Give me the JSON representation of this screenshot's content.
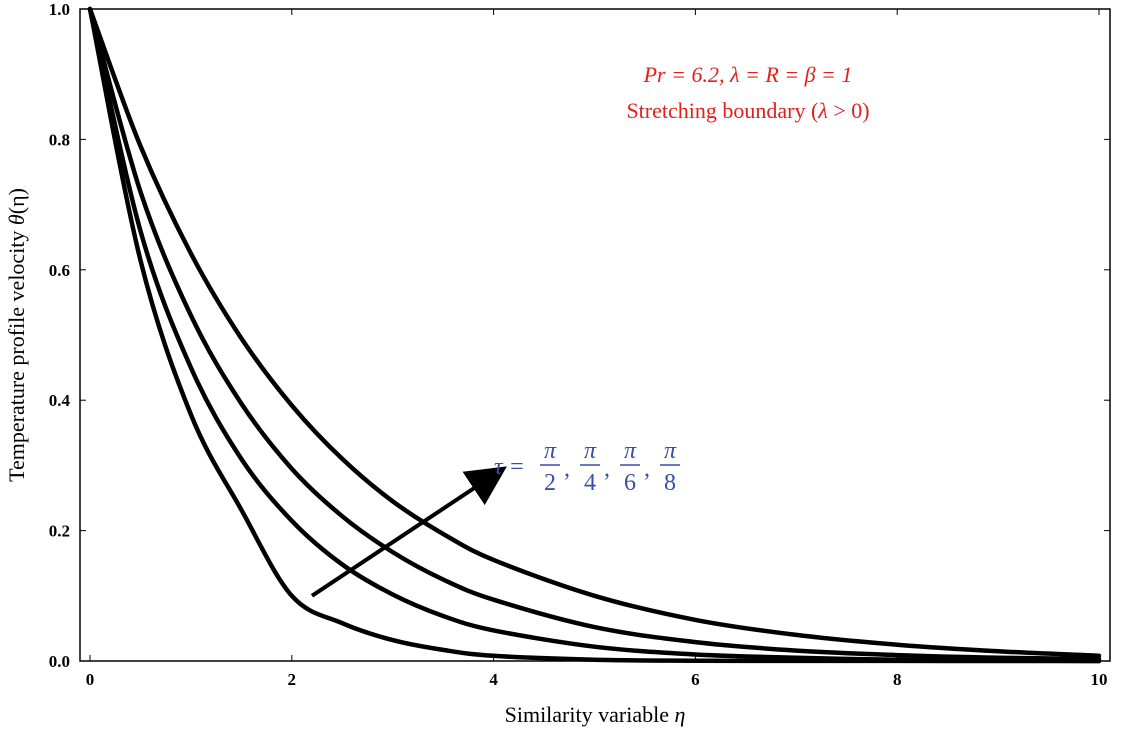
{
  "chart_data": {
    "type": "line",
    "xlabel_text": "Similarity variable ",
    "xlabel_symbol": "η",
    "ylabel_text": "Temperature profile velocity ",
    "ylabel_symbol": "θ",
    "ylabel_arg": "(η)",
    "xlim": [
      0,
      10
    ],
    "ylim": [
      0,
      1
    ],
    "x_ticks": [
      0,
      2,
      4,
      6,
      8,
      10
    ],
    "x_tick_labels": [
      "0",
      "2",
      "4",
      "6",
      "8",
      "10"
    ],
    "y_ticks": [
      0,
      0.2,
      0.4,
      0.6,
      0.8,
      1.0
    ],
    "y_tick_labels": [
      "0.0",
      "0.2",
      "0.4",
      "0.6",
      "0.8",
      "1.0"
    ],
    "grid": false,
    "series": [
      {
        "x": [
          0,
          0.5,
          1,
          1.5,
          2,
          2.5,
          3,
          3.5,
          4,
          5,
          6,
          7,
          8,
          9,
          10
        ],
        "y": [
          1.0,
          0.615,
          0.378,
          0.232,
          0.1,
          0.058,
          0.032,
          0.017,
          0.008,
          0.002,
          0.0005,
          0.0002,
          0.0001,
          0.0,
          0.0
        ]
      },
      {
        "x": [
          0,
          0.5,
          1,
          1.5,
          2,
          2.5,
          3,
          3.5,
          4,
          5,
          6,
          7,
          8,
          9,
          10
        ],
        "y": [
          1.0,
          0.66,
          0.45,
          0.31,
          0.215,
          0.148,
          0.102,
          0.069,
          0.047,
          0.022,
          0.01,
          0.005,
          0.002,
          0.001,
          0.0
        ]
      },
      {
        "x": [
          0,
          0.5,
          1,
          1.5,
          2,
          2.5,
          3,
          3.5,
          4,
          5,
          6,
          7,
          8,
          9,
          10
        ],
        "y": [
          1.0,
          0.72,
          0.53,
          0.395,
          0.295,
          0.222,
          0.167,
          0.125,
          0.094,
          0.052,
          0.029,
          0.016,
          0.009,
          0.005,
          0.003
        ]
      },
      {
        "x": [
          0,
          0.5,
          1,
          1.5,
          2,
          2.5,
          3,
          3.5,
          4,
          5,
          6,
          7,
          8,
          9,
          10
        ],
        "y": [
          1.0,
          0.79,
          0.625,
          0.495,
          0.392,
          0.31,
          0.245,
          0.195,
          0.155,
          0.1,
          0.063,
          0.04,
          0.025,
          0.015,
          0.008
        ]
      }
    ],
    "annotations": {
      "params_line": "Pr = 6.2, λ = R = β = 1",
      "boundary_text": "Stretching boundary (",
      "boundary_lambda": "λ",
      "boundary_tail": " > 0)",
      "tau": {
        "lhs": "τ = ",
        "numerator": "π",
        "denominators": [
          "2",
          "4",
          "6",
          "8"
        ],
        "separator": ","
      },
      "arrow": {
        "from": [
          2.2,
          0.1
        ],
        "to": [
          4.0,
          0.285
        ]
      }
    },
    "colors": {
      "curve": "#000000",
      "params": "#e0201c",
      "tau": "#3a4fa8",
      "arrow": "#000000"
    }
  }
}
